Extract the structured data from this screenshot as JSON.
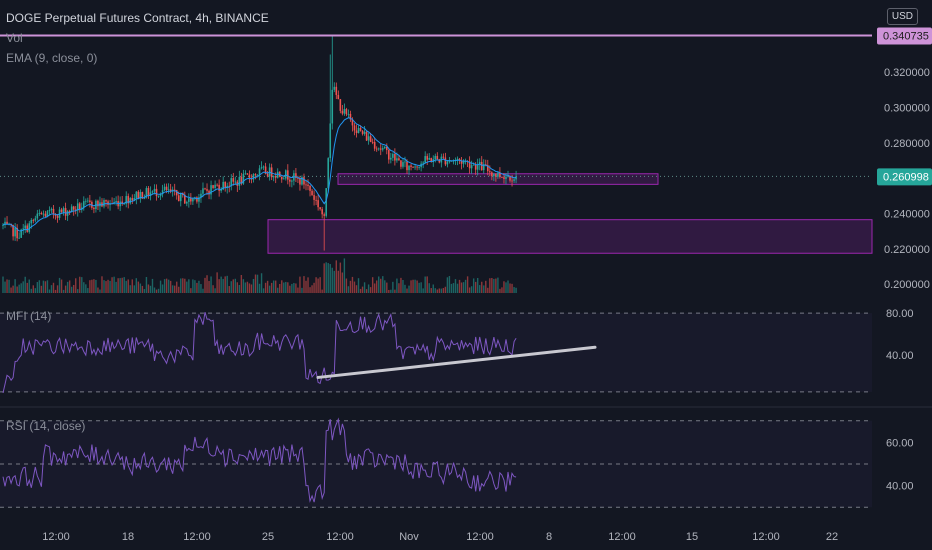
{
  "header": {
    "title": "DOGE Perpetual Futures Contract, 4h, BINANCE",
    "volume_label": "Vol",
    "ema_label": "EMA (9, close, 0)",
    "mfi_label": "MFI (14)",
    "rsi_label": "RSI (14, close)",
    "currency": "USD"
  },
  "price_axis": {
    "ticks": [
      "0.320000",
      "0.300000",
      "0.280000",
      "0.240000",
      "0.220000",
      "0.200000"
    ],
    "high_label": "0.340735",
    "last_label": "0.260998"
  },
  "mfi_axis": {
    "ticks": [
      "80.00",
      "40.00"
    ]
  },
  "rsi_axis": {
    "ticks": [
      "60.00",
      "40.00"
    ]
  },
  "time_axis": {
    "ticks": [
      "12:00",
      "18",
      "12:00",
      "25",
      "12:00",
      "Nov",
      "12:00",
      "8",
      "12:00",
      "15",
      "12:00",
      "22"
    ]
  },
  "colors": {
    "up": "#26a69a",
    "down": "#ef5350",
    "ema": "#2196f3",
    "oscillator": "#7e57c2",
    "zone": "#9c27b0",
    "high_line": "#ce93d8",
    "trendline": "#c8c8d0"
  },
  "chart_data": [
    {
      "type": "candlestick",
      "title": "DOGE Perpetual Futures Contract, 4h, BINANCE",
      "ylim": [
        0.195,
        0.345
      ],
      "ohlc": [],
      "ema": {
        "name": "EMA (9, close, 0)",
        "period": 9
      },
      "volume": {
        "name": "Vol"
      },
      "annotations": {
        "high_line": 0.340735,
        "last_price": 0.260998,
        "zones": [
          [
            0.2565,
            0.2625
          ],
          [
            0.2175,
            0.2365
          ]
        ]
      }
    },
    {
      "type": "line",
      "name": "MFI (14)",
      "ylim": [
        10,
        90
      ],
      "bands": [
        80,
        20
      ],
      "values": [],
      "trendline": [
        [
          31,
          91
        ],
        [
          27,
          120
        ]
      ]
    },
    {
      "type": "line",
      "name": "RSI (14, close)",
      "ylim": [
        25,
        75
      ],
      "bands": [
        70,
        50,
        30
      ],
      "values": []
    }
  ]
}
